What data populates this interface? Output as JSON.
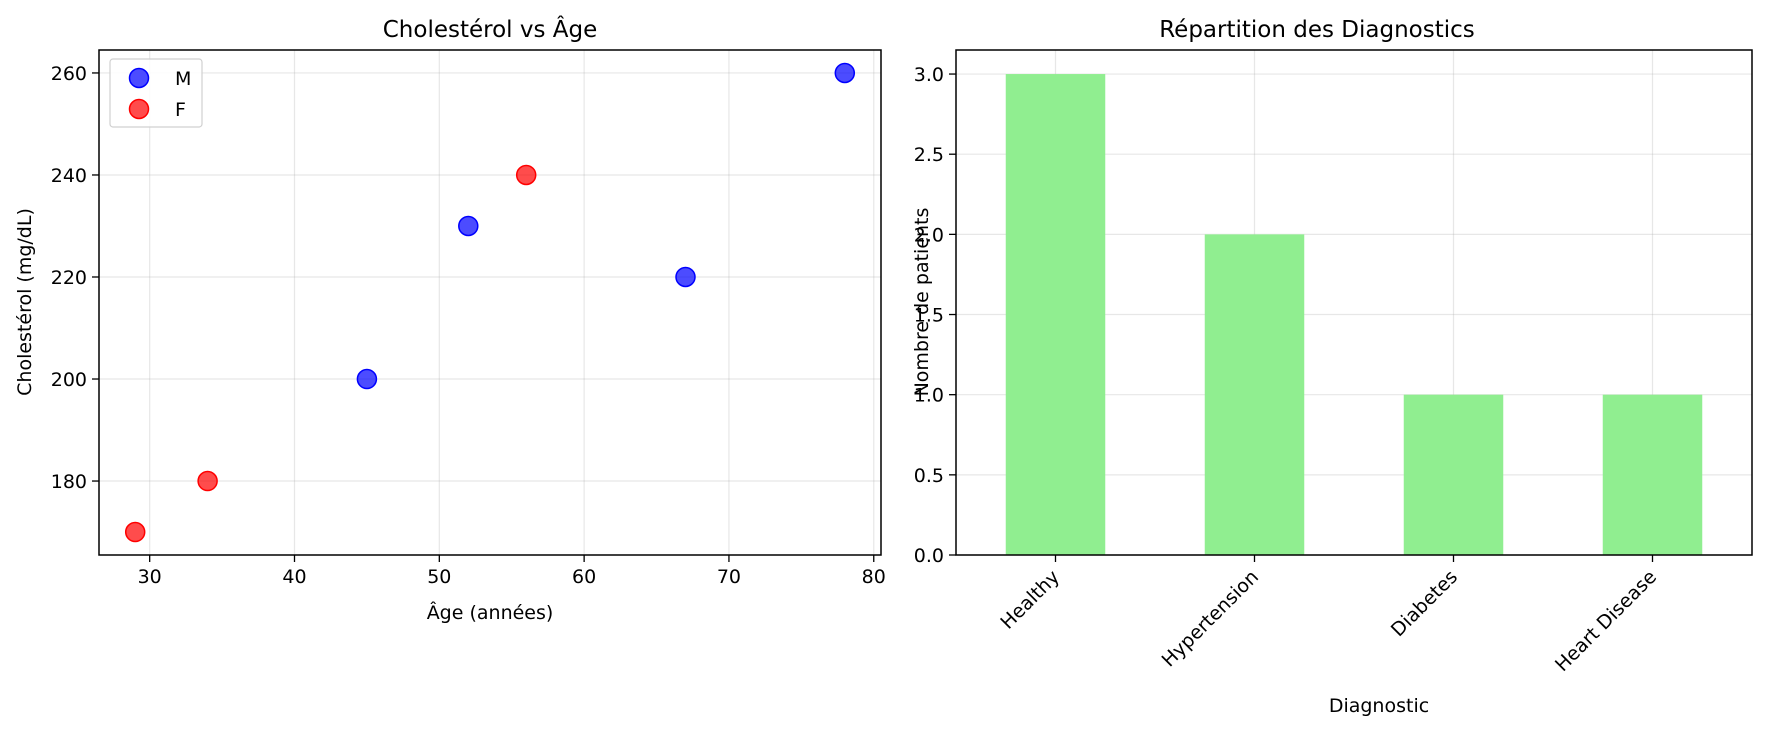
{
  "figure": {
    "background": "#ffffff"
  },
  "chart_data": [
    {
      "type": "scatter",
      "title": "Cholestérol vs Âge",
      "xlabel": "Âge (années)",
      "ylabel": "Cholestérol (mg/dL)",
      "xlim": [
        26.5,
        80.5
      ],
      "ylim": [
        165.5,
        264.5
      ],
      "xticks": [
        30,
        40,
        50,
        60,
        70,
        80
      ],
      "yticks": [
        180,
        200,
        220,
        240,
        260
      ],
      "grid": true,
      "legend_position": "top-left",
      "series": [
        {
          "name": "M",
          "color": "#0000ff",
          "points": [
            {
              "x": 45,
              "y": 200
            },
            {
              "x": 52,
              "y": 230
            },
            {
              "x": 67,
              "y": 220
            },
            {
              "x": 78,
              "y": 260
            }
          ]
        },
        {
          "name": "F",
          "color": "#ff0000",
          "points": [
            {
              "x": 29,
              "y": 170
            },
            {
              "x": 34,
              "y": 180
            },
            {
              "x": 56,
              "y": 240
            }
          ]
        }
      ]
    },
    {
      "type": "bar",
      "title": "Répartition des Diagnostics",
      "xlabel": "Diagnostic",
      "ylabel": "Nombre de patients",
      "categories": [
        "Healthy",
        "Hypertension",
        "Diabetes",
        "Heart Disease"
      ],
      "values": [
        3,
        2,
        1,
        1
      ],
      "ylim": [
        0,
        3.15
      ],
      "yticks": [
        "0.0",
        "0.5",
        "1.0",
        "1.5",
        "2.0",
        "2.5",
        "3.0"
      ],
      "bar_color": "#90ee90",
      "grid": true,
      "category_label_rotation": -45
    }
  ]
}
